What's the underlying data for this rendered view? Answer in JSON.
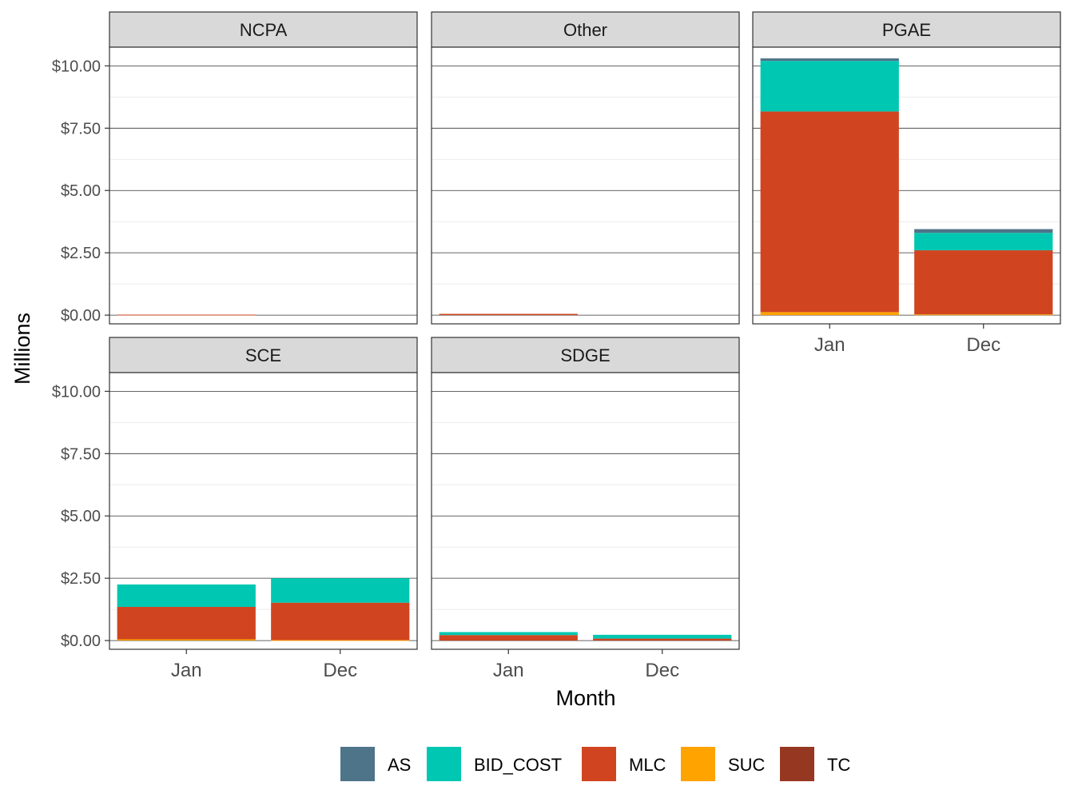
{
  "chart_data": {
    "type": "bar",
    "stacked": true,
    "xlabel": "Month",
    "ylabel": "Millions",
    "categories": [
      "Jan",
      "Dec"
    ],
    "ylim": [
      -0.35,
      10.75
    ],
    "y_ticks": [
      "$0.00",
      "$2.50",
      "$5.00",
      "$7.50",
      "$10.00"
    ],
    "y_tick_values": [
      0,
      2.5,
      5,
      7.5,
      10
    ],
    "grid": true,
    "legend_position": "bottom",
    "legend": [
      {
        "name": "AS",
        "color": "#4e7489"
      },
      {
        "name": "BID_COST",
        "color": "#00c7b1"
      },
      {
        "name": "MLC",
        "color": "#d04520"
      },
      {
        "name": "SUC",
        "color": "#ffa300"
      },
      {
        "name": "TC",
        "color": "#963821"
      }
    ],
    "stack_order": [
      "SUC",
      "TC",
      "MLC",
      "BID_COST",
      "AS"
    ],
    "panels": [
      {
        "title": "NCPA",
        "show_x_ticks": false,
        "values": {
          "Jan": {
            "SUC": 0,
            "TC": 0,
            "MLC": 0.02,
            "BID_COST": 0,
            "AS": 0
          },
          "Dec": {
            "SUC": 0,
            "TC": 0,
            "MLC": 0,
            "BID_COST": 0,
            "AS": 0
          }
        }
      },
      {
        "title": "Other",
        "show_x_ticks": false,
        "values": {
          "Jan": {
            "SUC": 0,
            "TC": 0,
            "MLC": 0.05,
            "BID_COST": 0,
            "AS": 0
          },
          "Dec": {
            "SUC": 0,
            "TC": 0,
            "MLC": 0,
            "BID_COST": 0,
            "AS": 0
          }
        }
      },
      {
        "title": "PGAE",
        "show_x_ticks": true,
        "values": {
          "Jan": {
            "SUC": 0.12,
            "TC": 0,
            "MLC": 8.05,
            "BID_COST": 2.03,
            "AS": 0.1
          },
          "Dec": {
            "SUC": 0.03,
            "TC": 0,
            "MLC": 2.57,
            "BID_COST": 0.7,
            "AS": 0.15
          }
        }
      },
      {
        "title": "SCE",
        "show_x_ticks": true,
        "values": {
          "Jan": {
            "SUC": 0.05,
            "TC": 0,
            "MLC": 1.3,
            "BID_COST": 0.9,
            "AS": 0
          },
          "Dec": {
            "SUC": 0.02,
            "TC": 0,
            "MLC": 1.5,
            "BID_COST": 0.98,
            "AS": 0
          }
        }
      },
      {
        "title": "SDGE",
        "show_x_ticks": true,
        "values": {
          "Jan": {
            "SUC": 0,
            "TC": 0,
            "MLC": 0.22,
            "BID_COST": 0.12,
            "AS": 0
          },
          "Dec": {
            "SUC": 0,
            "TC": 0,
            "MLC": 0.08,
            "BID_COST": 0.15,
            "AS": 0
          }
        }
      }
    ]
  }
}
